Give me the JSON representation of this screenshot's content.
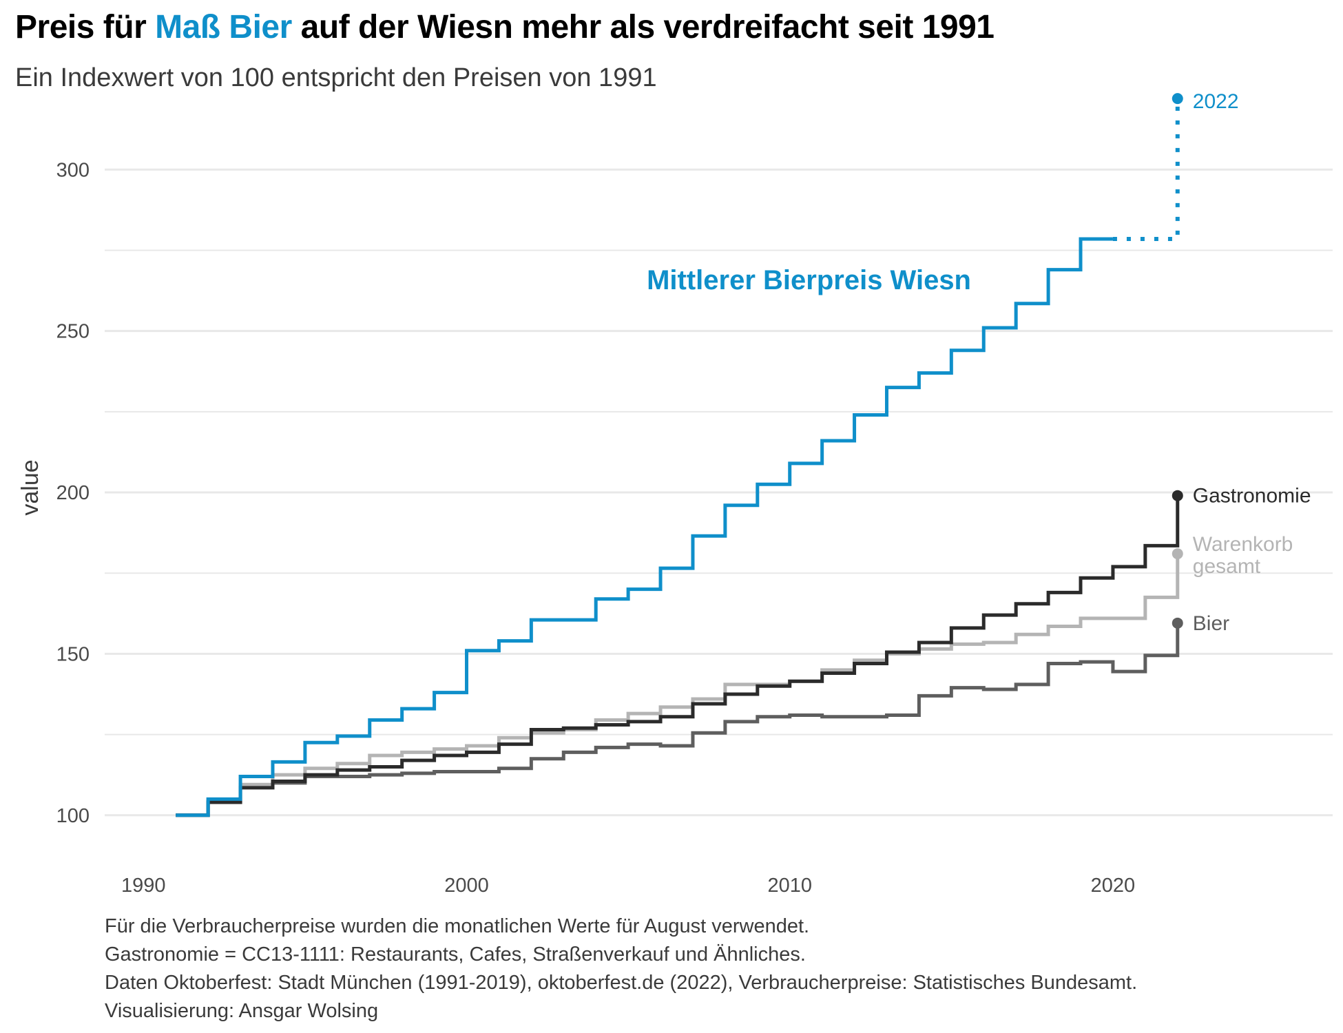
{
  "title": {
    "before": "Preis für ",
    "highlight": "Maß Bier",
    "after": " auf der Wiesn mehr als verdreifacht seit 1991"
  },
  "subtitle": "Ein Indexwert von 100 entspricht den Preisen von 1991",
  "caption": [
    "Für die Verbraucherpreise wurden die monatlichen Werte für August verwendet.",
    "Gastronomie = CC13-1111: Restaurants, Cafes, Straßenverkauf und Ähnliches.",
    "Daten Oktoberfest: Stadt München (1991-2019), oktoberfest.de (2022), Verbraucherpreise: Statistisches Bundesamt.",
    "Visualisierung: Ansgar Wolsing"
  ],
  "colors": {
    "wiesn": "#0f8fca",
    "gastronomie": "#2b2b2b",
    "warenkorb": "#b4b4b4",
    "bier": "#5e5e5e",
    "grid": "#e8e8e8"
  },
  "chart_data": {
    "type": "line",
    "step": true,
    "xlim": [
      1988.8,
      2026.8
    ],
    "ylim": [
      88,
      312
    ],
    "ylabel": "value",
    "xticks": [
      1990,
      2000,
      2010,
      2020
    ],
    "yticks": [
      100,
      150,
      200,
      250,
      300
    ],
    "grid": true,
    "series": [
      {
        "key": "gastronomie",
        "label": "Gastronomie",
        "x": [
          1991,
          1992,
          1993,
          1994,
          1995,
          1996,
          1997,
          1998,
          1999,
          2000,
          2001,
          2002,
          2003,
          2004,
          2005,
          2006,
          2007,
          2008,
          2009,
          2010,
          2011,
          2012,
          2013,
          2014,
          2015,
          2016,
          2017,
          2018,
          2019,
          2020,
          2021,
          2022
        ],
        "values": [
          100,
          104,
          108.5,
          110.5,
          112.5,
          114,
          115,
          117,
          118.5,
          119.5,
          122,
          126.5,
          127,
          128,
          129,
          130.5,
          134.5,
          137.5,
          140,
          141.5,
          144,
          147,
          150.5,
          153.5,
          158,
          162,
          165.5,
          169,
          173.5,
          177,
          183.5,
          199
        ]
      },
      {
        "key": "warenkorb",
        "label": "Warenkorb gesamt",
        "x": [
          1991,
          1992,
          1993,
          1994,
          1995,
          1996,
          1997,
          1998,
          1999,
          2000,
          2001,
          2002,
          2003,
          2004,
          2005,
          2006,
          2007,
          2008,
          2009,
          2010,
          2011,
          2012,
          2013,
          2014,
          2015,
          2016,
          2017,
          2018,
          2019,
          2020,
          2021,
          2022
        ],
        "values": [
          100,
          104.5,
          109.5,
          112.5,
          114.5,
          116,
          118.5,
          119.5,
          120.5,
          121.5,
          124,
          125.5,
          126.5,
          129.5,
          131.5,
          133.5,
          136,
          140.5,
          140.5,
          141.5,
          145,
          148,
          150,
          151.5,
          153,
          153.5,
          156,
          158.5,
          161,
          161,
          167.5,
          181
        ]
      },
      {
        "key": "bier",
        "label": "Bier",
        "x": [
          1991,
          1992,
          1993,
          1994,
          1995,
          1996,
          1997,
          1998,
          1999,
          2000,
          2001,
          2002,
          2003,
          2004,
          2005,
          2006,
          2007,
          2008,
          2009,
          2010,
          2011,
          2012,
          2013,
          2014,
          2015,
          2016,
          2017,
          2018,
          2019,
          2020,
          2021,
          2022
        ],
        "values": [
          100,
          104,
          109,
          110,
          112,
          112,
          112.5,
          113,
          113.5,
          113.5,
          114.5,
          117.5,
          119.5,
          121,
          122,
          121.5,
          125.5,
          129,
          130.5,
          131,
          130.5,
          130.5,
          131,
          137,
          139.5,
          139,
          140.5,
          147,
          147.5,
          144.5,
          149.5,
          159.5
        ]
      },
      {
        "key": "wiesn",
        "label": "Mittlerer Bierpreis Wiesn",
        "x": [
          1991,
          1992,
          1993,
          1994,
          1995,
          1996,
          1997,
          1998,
          1999,
          2000,
          2001,
          2002,
          2003,
          2004,
          2005,
          2006,
          2007,
          2008,
          2009,
          2010,
          2011,
          2012,
          2013,
          2014,
          2015,
          2016,
          2017,
          2018,
          2019,
          2022
        ],
        "values": [
          100,
          105,
          112,
          116.5,
          122.5,
          124.5,
          129.5,
          133,
          138,
          151,
          154,
          160.5,
          160.5,
          167,
          170,
          176.5,
          186.5,
          196,
          202.5,
          209,
          216,
          224,
          232.5,
          237,
          244,
          251,
          258.5,
          269,
          278.5,
          322
        ],
        "end_label": "2022"
      }
    ]
  }
}
